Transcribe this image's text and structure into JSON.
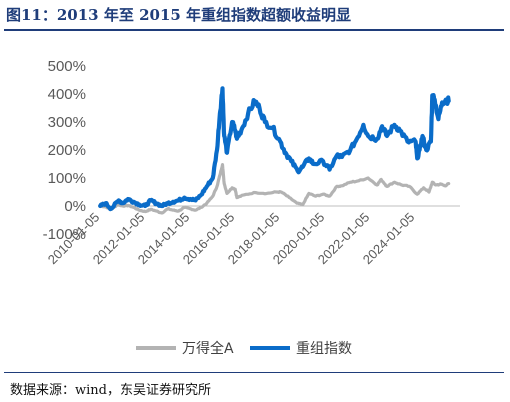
{
  "header": {
    "title": "图11：2013 年至 2015 年重组指数超额收益明显"
  },
  "footer": {
    "source": "数据来源：wind，东吴证券研究所"
  },
  "chart_data": {
    "type": "line",
    "title": "",
    "xlabel": "",
    "ylabel": "",
    "ylim": [
      -100,
      500
    ],
    "yticks": [
      "-100%",
      "0%",
      "100%",
      "200%",
      "300%",
      "400%",
      "500%"
    ],
    "xlim": [
      "2010-01-01",
      "2025-12-31"
    ],
    "xticks": [
      "2010-01-05",
      "2012-01-05",
      "2014-01-05",
      "2016-01-05",
      "2018-01-05",
      "2020-01-05",
      "2022-01-05",
      "2024-01-05"
    ],
    "legend": "bottom",
    "grid": false,
    "colors": {
      "wande_a": "#b3b3b3",
      "restructuring": "#0a6cc9"
    },
    "series": [
      {
        "name": "万得全A",
        "points": [
          [
            "2010-01-05",
            0
          ],
          [
            "2010-04-01",
            -3
          ],
          [
            "2010-07-01",
            -12
          ],
          [
            "2010-10-15",
            5
          ],
          [
            "2011-01-05",
            0
          ],
          [
            "2011-04-01",
            2
          ],
          [
            "2011-07-01",
            -5
          ],
          [
            "2011-10-01",
            -15
          ],
          [
            "2012-01-05",
            -20
          ],
          [
            "2012-04-01",
            -12
          ],
          [
            "2012-07-01",
            -18
          ],
          [
            "2012-10-01",
            -25
          ],
          [
            "2013-01-05",
            -10
          ],
          [
            "2013-04-01",
            -15
          ],
          [
            "2013-07-01",
            -18
          ],
          [
            "2013-10-01",
            -5
          ],
          [
            "2014-01-05",
            -10
          ],
          [
            "2014-04-01",
            -15
          ],
          [
            "2014-07-01",
            -5
          ],
          [
            "2014-10-01",
            10
          ],
          [
            "2015-01-05",
            35
          ],
          [
            "2015-03-15",
            70
          ],
          [
            "2015-05-01",
            110
          ],
          [
            "2015-06-12",
            148
          ],
          [
            "2015-07-10",
            80
          ],
          [
            "2015-08-25",
            45
          ],
          [
            "2015-11-15",
            65
          ],
          [
            "2016-01-05",
            60
          ],
          [
            "2016-02-01",
            30
          ],
          [
            "2016-06-01",
            40
          ],
          [
            "2016-12-01",
            48
          ],
          [
            "2017-06-01",
            45
          ],
          [
            "2017-11-01",
            50
          ],
          [
            "2018-01-20",
            50
          ],
          [
            "2018-06-01",
            30
          ],
          [
            "2018-10-01",
            10
          ],
          [
            "2019-01-05",
            5
          ],
          [
            "2019-04-15",
            45
          ],
          [
            "2019-08-01",
            35
          ],
          [
            "2019-12-01",
            42
          ],
          [
            "2020-03-15",
            35
          ],
          [
            "2020-07-10",
            70
          ],
          [
            "2020-10-01",
            72
          ],
          [
            "2021-02-15",
            85
          ],
          [
            "2021-07-01",
            90
          ],
          [
            "2021-12-01",
            100
          ],
          [
            "2022-04-25",
            75
          ],
          [
            "2022-07-01",
            95
          ],
          [
            "2022-10-01",
            70
          ],
          [
            "2023-02-01",
            85
          ],
          [
            "2023-06-01",
            75
          ],
          [
            "2023-10-01",
            70
          ],
          [
            "2024-02-05",
            42
          ],
          [
            "2024-05-20",
            65
          ],
          [
            "2024-08-15",
            50
          ],
          [
            "2024-10-08",
            85
          ],
          [
            "2024-12-01",
            75
          ],
          [
            "2025-03-01",
            78
          ],
          [
            "2025-05-01",
            72
          ],
          [
            "2025-07-01",
            80
          ]
        ]
      },
      {
        "name": "重组指数",
        "points": [
          [
            "2010-01-05",
            0
          ],
          [
            "2010-04-01",
            10
          ],
          [
            "2010-07-01",
            -10
          ],
          [
            "2010-11-01",
            20
          ],
          [
            "2011-01-05",
            10
          ],
          [
            "2011-04-01",
            25
          ],
          [
            "2011-07-01",
            15
          ],
          [
            "2011-10-01",
            5
          ],
          [
            "2012-01-05",
            0
          ],
          [
            "2012-04-01",
            20
          ],
          [
            "2012-07-01",
            10
          ],
          [
            "2012-10-01",
            0
          ],
          [
            "2013-01-05",
            10
          ],
          [
            "2013-04-01",
            15
          ],
          [
            "2013-07-01",
            20
          ],
          [
            "2013-10-01",
            30
          ],
          [
            "2014-01-05",
            25
          ],
          [
            "2014-04-01",
            20
          ],
          [
            "2014-07-01",
            40
          ],
          [
            "2014-10-01",
            70
          ],
          [
            "2015-01-05",
            100
          ],
          [
            "2015-03-15",
            200
          ],
          [
            "2015-05-01",
            330
          ],
          [
            "2015-06-12",
            420
          ],
          [
            "2015-07-10",
            250
          ],
          [
            "2015-08-25",
            190
          ],
          [
            "2015-11-15",
            300
          ],
          [
            "2016-01-05",
            270
          ],
          [
            "2016-02-01",
            240
          ],
          [
            "2016-05-01",
            280
          ],
          [
            "2016-08-01",
            330
          ],
          [
            "2016-11-15",
            375
          ],
          [
            "2017-02-01",
            350
          ],
          [
            "2017-05-01",
            300
          ],
          [
            "2017-09-01",
            280
          ],
          [
            "2018-01-05",
            230
          ],
          [
            "2018-04-01",
            190
          ],
          [
            "2018-07-01",
            160
          ],
          [
            "2018-10-15",
            125
          ],
          [
            "2019-01-05",
            140
          ],
          [
            "2019-04-15",
            170
          ],
          [
            "2019-07-01",
            150
          ],
          [
            "2019-12-01",
            160
          ],
          [
            "2020-03-15",
            130
          ],
          [
            "2020-07-10",
            180
          ],
          [
            "2020-10-01",
            175
          ],
          [
            "2021-02-15",
            200
          ],
          [
            "2021-06-01",
            240
          ],
          [
            "2021-09-15",
            290
          ],
          [
            "2021-12-01",
            250
          ],
          [
            "2022-04-25",
            240
          ],
          [
            "2022-07-15",
            285
          ],
          [
            "2022-10-01",
            250
          ],
          [
            "2023-02-01",
            290
          ],
          [
            "2023-05-01",
            270
          ],
          [
            "2023-09-01",
            230
          ],
          [
            "2024-01-10",
            230
          ],
          [
            "2024-02-05",
            170
          ],
          [
            "2024-03-15",
            200
          ],
          [
            "2024-05-01",
            250
          ],
          [
            "2024-07-01",
            200
          ],
          [
            "2024-09-15",
            230
          ],
          [
            "2024-10-08",
            395
          ],
          [
            "2024-11-15",
            380
          ],
          [
            "2025-01-15",
            310
          ],
          [
            "2025-03-15",
            370
          ],
          [
            "2025-05-15",
            380
          ],
          [
            "2025-07-01",
            375
          ]
        ]
      }
    ]
  }
}
